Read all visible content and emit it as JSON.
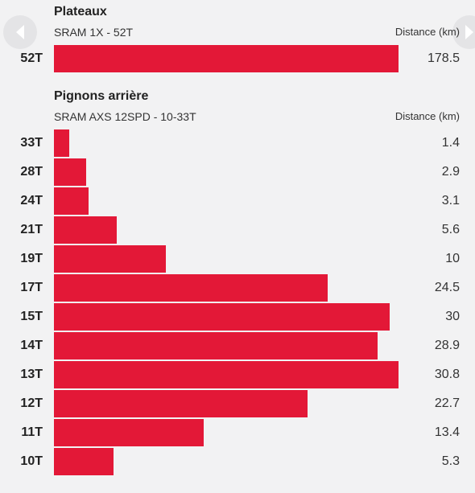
{
  "chart_data": [
    {
      "type": "bar",
      "orientation": "horizontal",
      "title": "Plateaux",
      "subtitle": "SRAM 1X - 52T",
      "unit_label": "Distance (km)",
      "categories": [
        "52T"
      ],
      "values": [
        178.5
      ],
      "value_labels": [
        "178.5"
      ],
      "xlim": [
        0,
        178.5
      ],
      "color": "#e31837"
    },
    {
      "type": "bar",
      "orientation": "horizontal",
      "title": "Pignons arrière",
      "subtitle": "SRAM AXS 12SPD - 10-33T",
      "unit_label": "Distance (km)",
      "categories": [
        "33T",
        "28T",
        "24T",
        "21T",
        "19T",
        "17T",
        "15T",
        "14T",
        "13T",
        "12T",
        "11T",
        "10T"
      ],
      "values": [
        1.4,
        2.9,
        3.1,
        5.6,
        10,
        24.5,
        30,
        28.9,
        30.8,
        22.7,
        13.4,
        5.3
      ],
      "value_labels": [
        "1.4",
        "2.9",
        "3.1",
        "5.6",
        "10",
        "24.5",
        "30",
        "28.9",
        "30.8",
        "22.7",
        "13.4",
        "5.3"
      ],
      "xlim": [
        0,
        30.8
      ],
      "color": "#e31837"
    }
  ],
  "nav": {
    "prev_icon": "chevron-left-icon",
    "next_icon": "chevron-right-icon"
  }
}
